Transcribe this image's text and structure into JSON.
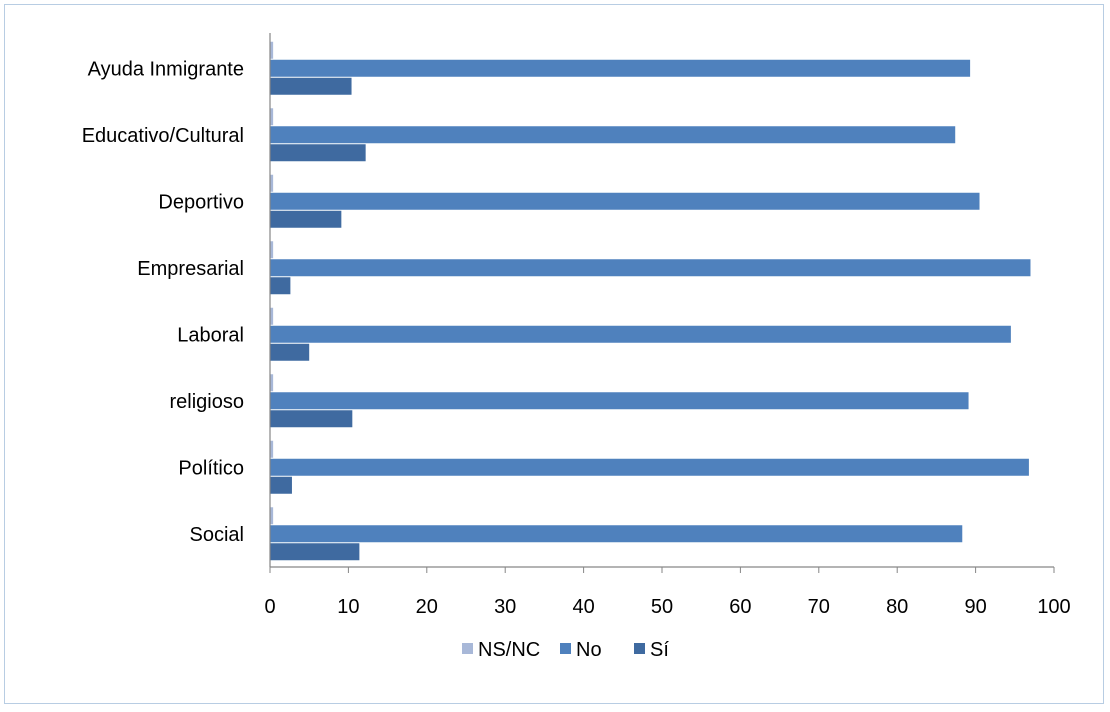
{
  "chart_data": {
    "type": "bar",
    "orientation": "horizontal",
    "categories": [
      "Ayuda Inmigrante",
      "Educativo/Cultural",
      "Deportivo",
      "Empresarial",
      "Laboral",
      "religioso",
      "Político",
      "Social"
    ],
    "series": [
      {
        "name": "NS/NC",
        "color": "#a8b8d8",
        "values": [
          0.4,
          0.4,
          0.4,
          0.4,
          0.4,
          0.4,
          0.4,
          0.4
        ]
      },
      {
        "name": "No",
        "color": "#4f81bd",
        "values": [
          89.3,
          87.4,
          90.5,
          97.0,
          94.5,
          89.1,
          96.8,
          88.3
        ]
      },
      {
        "name": "Sí",
        "color": "#3f6aa0",
        "values": [
          10.4,
          12.2,
          9.1,
          2.6,
          5.0,
          10.5,
          2.8,
          11.4
        ]
      }
    ],
    "xlim": [
      0,
      100
    ],
    "xticks": [
      "0",
      "10",
      "20",
      "30",
      "40",
      "50",
      "60",
      "70",
      "80",
      "90",
      "100"
    ],
    "legend_position": "bottom",
    "grid": false
  }
}
